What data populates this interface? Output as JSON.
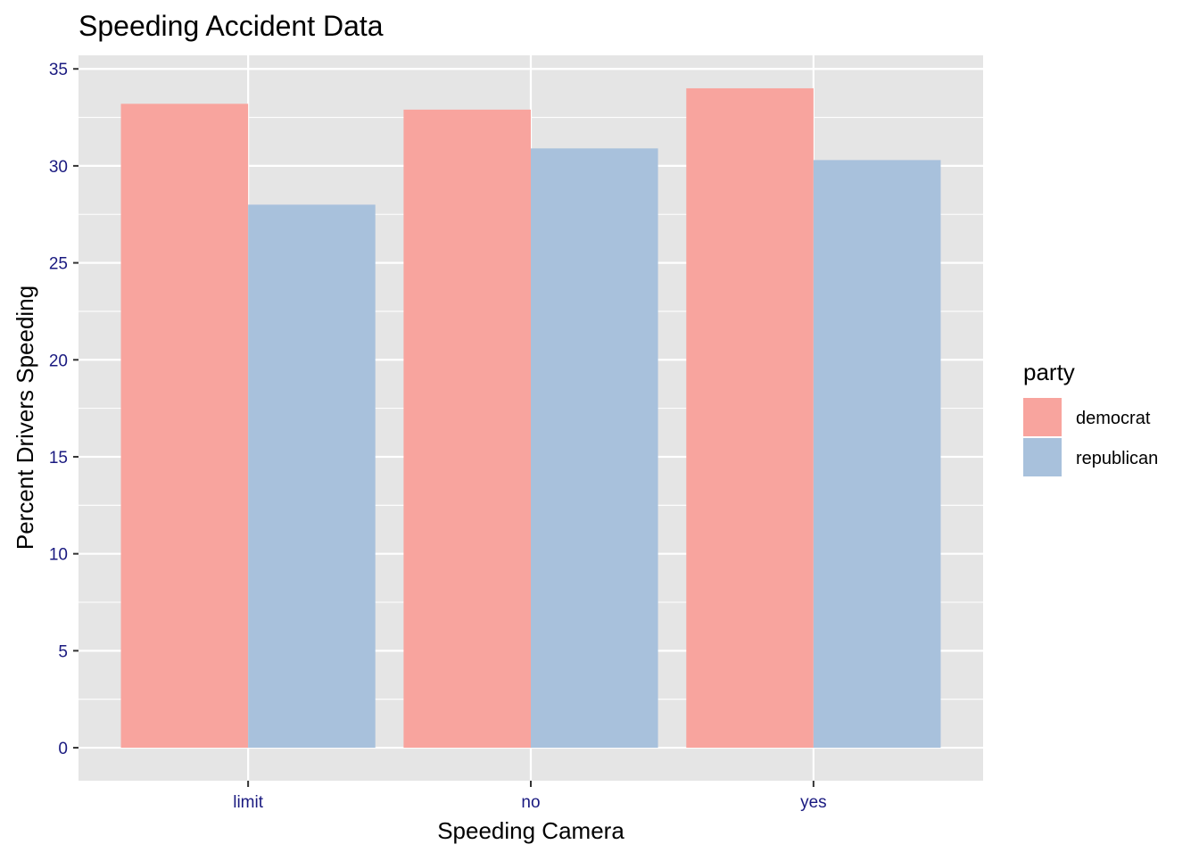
{
  "chart_data": {
    "type": "bar",
    "title": "Speeding Accident Data",
    "xlabel": "Speeding Camera",
    "ylabel": "Percent Drivers Speeding",
    "categories": [
      "limit",
      "no",
      "yes"
    ],
    "series": [
      {
        "name": "democrat",
        "values": [
          33.2,
          32.9,
          34.0
        ],
        "color": "#F8A49E"
      },
      {
        "name": "republican",
        "values": [
          28.0,
          30.9,
          30.3
        ],
        "color": "#A8C1DC"
      }
    ],
    "ylim": [
      -1.7,
      35.7
    ],
    "yticks": [
      0,
      5,
      10,
      15,
      20,
      25,
      30,
      35
    ],
    "grid": true,
    "legend": {
      "title": "party",
      "position": "right"
    },
    "colors": {
      "panel": "#E5E5E5",
      "grid": "#FFFFFF",
      "tick_label": "#1A1A80",
      "text": "#000000"
    }
  }
}
